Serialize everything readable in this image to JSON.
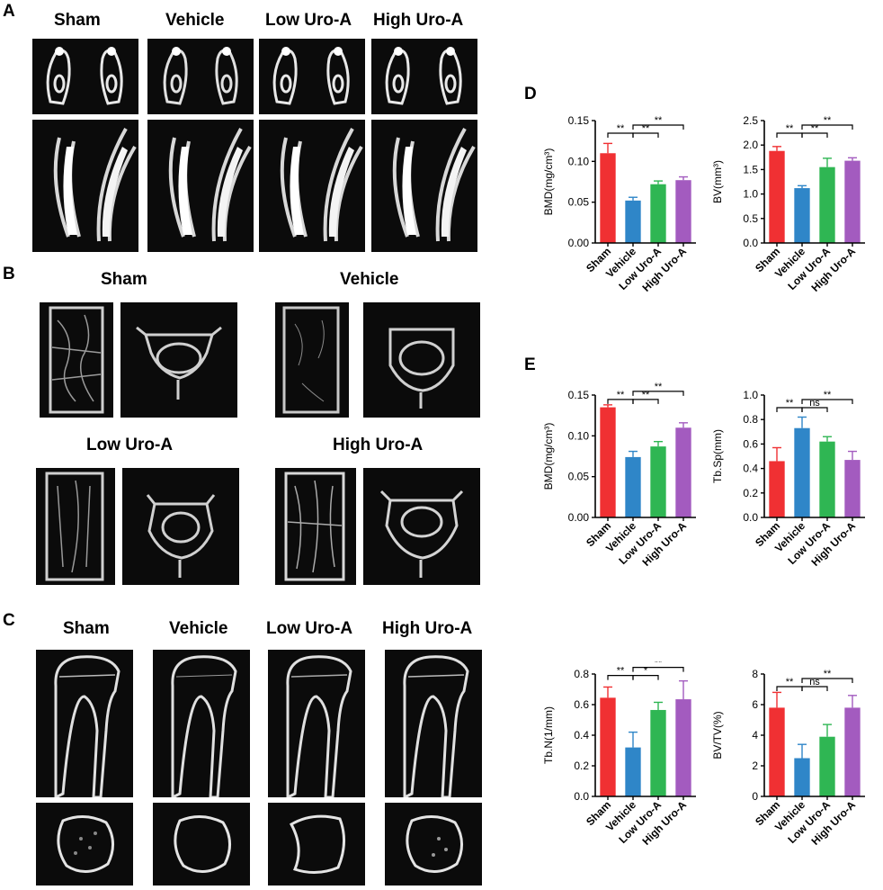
{
  "panels": {
    "A": {
      "letter": "A",
      "groups": [
        "Sham",
        "Vehicle",
        "Low Uro-A",
        "High Uro-A"
      ]
    },
    "B": {
      "letter": "B",
      "groups": [
        "Sham",
        "Vehicle",
        "Low Uro-A",
        "High Uro-A"
      ]
    },
    "C": {
      "letter": "C",
      "groups": [
        "Sham",
        "Vehicle",
        "Low Uro-A",
        "High Uro-A"
      ]
    },
    "D": {
      "letter": "D"
    },
    "E": {
      "letter": "E"
    }
  },
  "colors": {
    "sham": "#f03033",
    "vehicle": "#2f86c8",
    "low": "#2fb653",
    "high": "#a35bbf"
  },
  "chart_data": [
    {
      "type": "bar",
      "panel": "D",
      "categories": [
        "Sham",
        "Vehicle",
        "Low Uro-A",
        "High Uro-A"
      ],
      "values": [
        0.11,
        0.052,
        0.072,
        0.077
      ],
      "errors": [
        0.012,
        0.004,
        0.004,
        0.004
      ],
      "ylabel": "BMD(mg/cm³)",
      "ylim": [
        0,
        0.15
      ],
      "yticks": [
        "0.00",
        "0.05",
        "0.10",
        "0.15"
      ],
      "tickvals": [
        0,
        0.05,
        0.1,
        0.15
      ],
      "significance": [
        {
          "from": 0,
          "to": 1,
          "label": "**",
          "level": 0
        },
        {
          "from": 1,
          "to": 2,
          "label": "**",
          "level": 0
        },
        {
          "from": 1,
          "to": 3,
          "label": "**",
          "level": 1
        }
      ]
    },
    {
      "type": "bar",
      "panel": "D",
      "categories": [
        "Sham",
        "Vehicle",
        "Low Uro-A",
        "High Uro-A"
      ],
      "values": [
        1.88,
        1.12,
        1.55,
        1.68
      ],
      "errors": [
        0.09,
        0.05,
        0.18,
        0.06
      ],
      "ylabel": "BV(mm³)",
      "ylim": [
        0,
        2.5
      ],
      "yticks": [
        "0.0",
        "0.5",
        "1.0",
        "1.5",
        "2.0",
        "2.5"
      ],
      "tickvals": [
        0,
        0.5,
        1.0,
        1.5,
        2.0,
        2.5
      ],
      "significance": [
        {
          "from": 0,
          "to": 1,
          "label": "**",
          "level": 0
        },
        {
          "from": 1,
          "to": 2,
          "label": "**",
          "level": 0
        },
        {
          "from": 1,
          "to": 3,
          "label": "**",
          "level": 1
        }
      ]
    },
    {
      "type": "bar",
      "panel": "E",
      "categories": [
        "Sham",
        "Vehicle",
        "Low Uro-A",
        "High Uro-A"
      ],
      "values": [
        0.135,
        0.074,
        0.087,
        0.11
      ],
      "errors": [
        0.003,
        0.007,
        0.006,
        0.006
      ],
      "ylabel": "BMD(mg/cm³)",
      "ylim": [
        0,
        0.15
      ],
      "yticks": [
        "0.00",
        "0.05",
        "0.10",
        "0.15"
      ],
      "tickvals": [
        0,
        0.05,
        0.1,
        0.15
      ],
      "significance": [
        {
          "from": 0,
          "to": 1,
          "label": "**",
          "level": 0
        },
        {
          "from": 1,
          "to": 2,
          "label": "**",
          "level": 0
        },
        {
          "from": 1,
          "to": 3,
          "label": "**",
          "level": 1
        }
      ]
    },
    {
      "type": "bar",
      "panel": "E",
      "categories": [
        "Sham",
        "Vehicle",
        "Low Uro-A",
        "High Uro-A"
      ],
      "values": [
        0.46,
        0.73,
        0.62,
        0.47
      ],
      "errors": [
        0.11,
        0.09,
        0.04,
        0.07
      ],
      "ylabel": "Tb.Sp(mm)",
      "ylim": [
        0,
        1.0
      ],
      "yticks": [
        "0.0",
        "0.2",
        "0.4",
        "0.6",
        "0.8",
        "1.0"
      ],
      "tickvals": [
        0,
        0.2,
        0.4,
        0.6,
        0.8,
        1.0
      ],
      "significance": [
        {
          "from": 0,
          "to": 1,
          "label": "**",
          "level": 0
        },
        {
          "from": 1,
          "to": 2,
          "label": "ns",
          "level": 0
        },
        {
          "from": 1,
          "to": 3,
          "label": "**",
          "level": 1
        }
      ]
    },
    {
      "type": "bar",
      "panel": "E",
      "categories": [
        "Sham",
        "Vehicle",
        "Low Uro-A",
        "High Uro-A"
      ],
      "values": [
        0.645,
        0.32,
        0.565,
        0.635
      ],
      "errors": [
        0.07,
        0.1,
        0.05,
        0.12
      ],
      "ylabel": "Tb.N(1/mm)",
      "ylim": [
        0,
        0.8
      ],
      "yticks": [
        "0.0",
        "0.2",
        "0.4",
        "0.6",
        "0.8"
      ],
      "tickvals": [
        0,
        0.2,
        0.4,
        0.6,
        0.8
      ],
      "significance": [
        {
          "from": 0,
          "to": 1,
          "label": "**",
          "level": 0
        },
        {
          "from": 1,
          "to": 2,
          "label": "*",
          "level": 0
        },
        {
          "from": 1,
          "to": 3,
          "label": "**",
          "level": 1
        }
      ]
    },
    {
      "type": "bar",
      "panel": "E",
      "categories": [
        "Sham",
        "Vehicle",
        "Low Uro-A",
        "High Uro-A"
      ],
      "values": [
        5.8,
        2.5,
        3.9,
        5.8
      ],
      "errors": [
        1.0,
        0.9,
        0.8,
        0.8
      ],
      "ylabel": "BV/TV(%)",
      "ylim": [
        0,
        8
      ],
      "yticks": [
        "0",
        "2",
        "4",
        "6",
        "8"
      ],
      "tickvals": [
        0,
        2,
        4,
        6,
        8
      ],
      "significance": [
        {
          "from": 0,
          "to": 1,
          "label": "**",
          "level": 0
        },
        {
          "from": 1,
          "to": 2,
          "label": "ns",
          "level": 0
        },
        {
          "from": 1,
          "to": 3,
          "label": "**",
          "level": 1
        }
      ]
    }
  ]
}
